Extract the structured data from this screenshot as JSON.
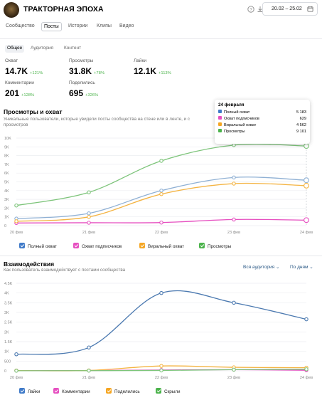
{
  "header": {
    "title": "ТРАКТОРНАЯ ЭПОХА",
    "date_range": "20.02 – 25.02",
    "icons": [
      "help-icon",
      "download-icon",
      "calendar-icon"
    ]
  },
  "tabs": [
    {
      "label": "Сообщество"
    },
    {
      "label": "Посты",
      "active": true
    },
    {
      "label": "Истории"
    },
    {
      "label": "Клипы"
    },
    {
      "label": "Видео"
    }
  ],
  "subtabs": [
    {
      "label": "Общее",
      "active": true
    },
    {
      "label": "Аудитория"
    },
    {
      "label": "Контент"
    }
  ],
  "kpis": [
    {
      "label": "Охват",
      "value": "14.7K",
      "delta": "+121%"
    },
    {
      "label": "Просмотры",
      "value": "31.8K",
      "delta": "+78%"
    },
    {
      "label": "Лайки",
      "value": "12.1K",
      "delta": "+113%"
    },
    {
      "label": "Комментарии",
      "value": "201",
      "delta": "+128%"
    },
    {
      "label": "Поделились",
      "value": "695",
      "delta": "+326%"
    }
  ],
  "colors": {
    "green": "#7dc47a",
    "blue": "#8fb0d4",
    "orange": "#f4b443",
    "pink": "#e64fc0",
    "green_legend": "#4bb34b",
    "blue_legend": "#3f7ac8",
    "orange_legend": "#f5a623",
    "pink_legend": "#e64fc0",
    "likes_line": "#4b79b0"
  },
  "chart1": {
    "title": "Просмотры и охват",
    "description_line1": "Уникальные пользователи, которые увидели посты сообщества на стене или в ленте, и с",
    "description_line2": "просмотров",
    "tooltip": {
      "date": "24 февраля",
      "rows": [
        {
          "label": "Полный охват",
          "value": "5 183"
        },
        {
          "label": "Охват подписчиков",
          "value": "629"
        },
        {
          "label": "Виральный охват",
          "value": "4 562"
        },
        {
          "label": "Просмотры",
          "value": "9 101"
        }
      ]
    },
    "legend": [
      "Полный охват",
      "Охват подписчиков",
      "Виральный охват",
      "Просмотры"
    ]
  },
  "chart2": {
    "title": "Взаимодействия",
    "description": "Как пользователь взаимодействует с постами сообщества",
    "dropdown_audience": "Вся аудитория",
    "dropdown_period": "По дням",
    "legend": [
      "Лайки",
      "Комментарии",
      "Поделились",
      "Скрыли"
    ]
  },
  "chart_data": [
    {
      "type": "line",
      "title": "Просмотры и охват",
      "x": [
        "20 фев",
        "21 фев",
        "22 фев",
        "23 фев",
        "24 фев"
      ],
      "yticks": [
        "0",
        "1K",
        "2K",
        "3K",
        "4K",
        "5K",
        "6K",
        "7K",
        "8K",
        "9K",
        "10K"
      ],
      "ylim": [
        0,
        10000
      ],
      "series": [
        {
          "name": "Полный охват",
          "values": [
            800,
            1400,
            4000,
            5500,
            5183
          ]
        },
        {
          "name": "Охват подписчиков",
          "values": [
            300,
            330,
            350,
            700,
            629
          ]
        },
        {
          "name": "Виральный охват",
          "values": [
            500,
            1000,
            3600,
            4800,
            4562
          ]
        },
        {
          "name": "Просмотры",
          "values": [
            2300,
            3800,
            7400,
            9200,
            9101
          ]
        }
      ]
    },
    {
      "type": "line",
      "title": "Взаимодействия",
      "x": [
        "20 фев",
        "21 фев",
        "22 фев",
        "23 фев",
        "24 фев"
      ],
      "yticks": [
        "0",
        "500",
        "1K",
        "1.5K",
        "2K",
        "2.5K",
        "3K",
        "3.5K",
        "4K",
        "4.5K"
      ],
      "ylim": [
        0,
        4500
      ],
      "series": [
        {
          "name": "Лайки",
          "values": [
            850,
            1200,
            4000,
            3500,
            2650
          ]
        },
        {
          "name": "Комментарии",
          "values": [
            10,
            15,
            40,
            60,
            30
          ]
        },
        {
          "name": "Поделились",
          "values": [
            15,
            20,
            250,
            180,
            160
          ]
        },
        {
          "name": "Скрыли",
          "values": [
            5,
            10,
            20,
            60,
            80
          ]
        }
      ]
    }
  ]
}
